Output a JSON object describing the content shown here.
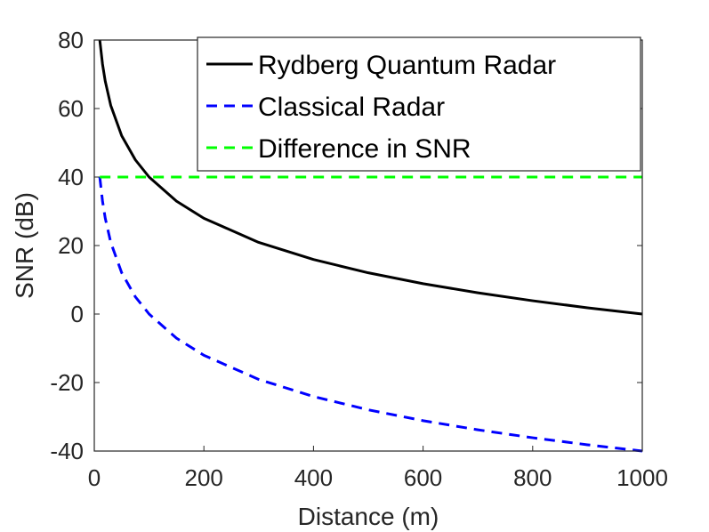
{
  "chart_data": {
    "type": "line",
    "title": "",
    "xlabel": "Distance (m)",
    "ylabel": "SNR (dB)",
    "xlim": [
      0,
      1000
    ],
    "ylim": [
      -40,
      80
    ],
    "xticks": [
      0,
      200,
      400,
      600,
      800,
      1000
    ],
    "yticks": [
      -40,
      -20,
      0,
      20,
      40,
      60,
      80
    ],
    "xtick_labels": [
      "0",
      "200",
      "400",
      "600",
      "800",
      1000
    ],
    "ytick_labels": [
      "-40",
      "-20",
      "0",
      "20",
      "40",
      "60",
      "80"
    ],
    "grid": false,
    "legend_position": "top-right",
    "series": [
      {
        "name": "Rydberg Quantum Radar",
        "color": "#000000",
        "style": "solid",
        "x": [
          10,
          15,
          20,
          30,
          50,
          75,
          100,
          150,
          200,
          300,
          400,
          500,
          600,
          700,
          800,
          900,
          1000
        ],
        "y": [
          80,
          72.96,
          67.96,
          60.92,
          52.04,
          45,
          40,
          32.96,
          27.96,
          20.92,
          15.92,
          12.04,
          8.87,
          6.2,
          3.88,
          1.83,
          0
        ]
      },
      {
        "name": "Classical Radar",
        "color": "#0000ff",
        "style": "dashed",
        "x": [
          10,
          15,
          20,
          30,
          50,
          75,
          100,
          150,
          200,
          300,
          400,
          500,
          600,
          700,
          800,
          900,
          1000
        ],
        "y": [
          40,
          32.96,
          27.96,
          20.92,
          12.04,
          5,
          0,
          -7.04,
          -12.04,
          -19.08,
          -24.08,
          -27.96,
          -31.13,
          -33.8,
          -36.12,
          -38.17,
          -40
        ]
      },
      {
        "name": "Difference in SNR",
        "color": "#00ff00",
        "style": "dashed",
        "x": [
          10,
          1000
        ],
        "y": [
          40,
          40
        ]
      }
    ]
  }
}
